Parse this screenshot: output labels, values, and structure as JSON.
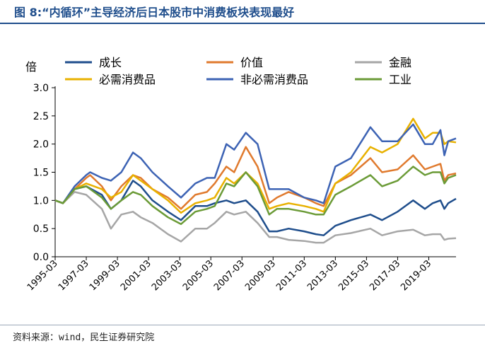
{
  "header": {
    "title": "图 8:“内循环”主导经济后日本股市中消费板块表现最好",
    "title_color": "#1f4e8c",
    "rule_color": "#1f4e8c"
  },
  "source": {
    "text": "资料来源：wind，民生证券研究院"
  },
  "chart_data": {
    "type": "line",
    "ylabel": "倍",
    "ylim": [
      0.0,
      3.0
    ],
    "yticks": [
      "0.0",
      "0.5",
      "1.0",
      "1.5",
      "2.0",
      "2.5",
      "3.0"
    ],
    "xlim": [
      "1995-03",
      "2020-12"
    ],
    "xticks": [
      "1995-03",
      "1997-03",
      "1999-03",
      "2001-03",
      "2003-03",
      "2005-03",
      "2007-03",
      "2009-03",
      "2011-03",
      "2013-03",
      "2015-03",
      "2017-03",
      "2019-03"
    ],
    "legend_position": "top",
    "grid": false,
    "series": [
      {
        "name": "成长",
        "color": "#1f4e8c",
        "points": [
          [
            "1995-03",
            1.0
          ],
          [
            "1995-09",
            0.95
          ],
          [
            "1996-06",
            1.2
          ],
          [
            "1997-03",
            1.25
          ],
          [
            "1998-03",
            1.1
          ],
          [
            "1998-10",
            0.85
          ],
          [
            "1999-06",
            1.0
          ],
          [
            "2000-03",
            1.35
          ],
          [
            "2000-09",
            1.25
          ],
          [
            "2001-06",
            1.0
          ],
          [
            "2002-06",
            0.8
          ],
          [
            "2003-04",
            0.65
          ],
          [
            "2004-03",
            0.9
          ],
          [
            "2004-12",
            0.9
          ],
          [
            "2005-06",
            0.95
          ],
          [
            "2006-03",
            1.0
          ],
          [
            "2006-09",
            0.95
          ],
          [
            "2007-06",
            1.0
          ],
          [
            "2008-03",
            0.8
          ],
          [
            "2008-12",
            0.45
          ],
          [
            "2009-06",
            0.45
          ],
          [
            "2010-03",
            0.5
          ],
          [
            "2011-03",
            0.45
          ],
          [
            "2011-12",
            0.4
          ],
          [
            "2012-06",
            0.38
          ],
          [
            "2013-03",
            0.55
          ],
          [
            "2014-03",
            0.65
          ],
          [
            "2015-06",
            0.75
          ],
          [
            "2016-03",
            0.65
          ],
          [
            "2017-03",
            0.8
          ],
          [
            "2018-03",
            1.0
          ],
          [
            "2018-12",
            0.85
          ],
          [
            "2019-06",
            0.95
          ],
          [
            "2019-12",
            1.0
          ],
          [
            "2020-03",
            0.85
          ],
          [
            "2020-06",
            0.95
          ],
          [
            "2020-12",
            1.03
          ]
        ]
      },
      {
        "name": "价值",
        "color": "#e07a2e",
        "points": [
          [
            "1995-03",
            1.0
          ],
          [
            "1995-09",
            0.95
          ],
          [
            "1996-06",
            1.2
          ],
          [
            "1997-03",
            1.4
          ],
          [
            "1997-06",
            1.45
          ],
          [
            "1998-03",
            1.25
          ],
          [
            "1998-10",
            1.0
          ],
          [
            "1999-06",
            1.25
          ],
          [
            "2000-03",
            1.45
          ],
          [
            "2000-09",
            1.4
          ],
          [
            "2001-06",
            1.2
          ],
          [
            "2002-06",
            1.05
          ],
          [
            "2003-04",
            0.85
          ],
          [
            "2004-03",
            1.1
          ],
          [
            "2004-12",
            1.15
          ],
          [
            "2005-06",
            1.3
          ],
          [
            "2006-03",
            1.6
          ],
          [
            "2006-09",
            1.5
          ],
          [
            "2007-06",
            1.95
          ],
          [
            "2008-03",
            1.6
          ],
          [
            "2008-12",
            0.95
          ],
          [
            "2009-06",
            1.05
          ],
          [
            "2010-03",
            1.15
          ],
          [
            "2011-03",
            1.05
          ],
          [
            "2011-12",
            0.95
          ],
          [
            "2012-06",
            0.9
          ],
          [
            "2013-03",
            1.3
          ],
          [
            "2014-03",
            1.45
          ],
          [
            "2015-06",
            1.75
          ],
          [
            "2016-03",
            1.5
          ],
          [
            "2017-03",
            1.55
          ],
          [
            "2018-03",
            1.8
          ],
          [
            "2018-12",
            1.55
          ],
          [
            "2019-06",
            1.6
          ],
          [
            "2019-12",
            1.65
          ],
          [
            "2020-03",
            1.35
          ],
          [
            "2020-06",
            1.45
          ],
          [
            "2020-12",
            1.48
          ]
        ]
      },
      {
        "name": "金融",
        "color": "#a6a6a6",
        "points": [
          [
            "1995-03",
            1.0
          ],
          [
            "1995-09",
            0.95
          ],
          [
            "1996-06",
            1.15
          ],
          [
            "1997-03",
            1.1
          ],
          [
            "1998-03",
            0.85
          ],
          [
            "1998-10",
            0.5
          ],
          [
            "1999-06",
            0.75
          ],
          [
            "2000-03",
            0.8
          ],
          [
            "2000-09",
            0.7
          ],
          [
            "2001-06",
            0.6
          ],
          [
            "2002-06",
            0.4
          ],
          [
            "2003-04",
            0.27
          ],
          [
            "2004-03",
            0.5
          ],
          [
            "2004-12",
            0.5
          ],
          [
            "2005-06",
            0.6
          ],
          [
            "2006-03",
            0.8
          ],
          [
            "2006-09",
            0.75
          ],
          [
            "2007-06",
            0.8
          ],
          [
            "2008-03",
            0.6
          ],
          [
            "2008-12",
            0.35
          ],
          [
            "2009-06",
            0.35
          ],
          [
            "2010-03",
            0.3
          ],
          [
            "2011-03",
            0.28
          ],
          [
            "2011-12",
            0.25
          ],
          [
            "2012-06",
            0.25
          ],
          [
            "2013-03",
            0.38
          ],
          [
            "2014-03",
            0.42
          ],
          [
            "2015-06",
            0.5
          ],
          [
            "2016-03",
            0.38
          ],
          [
            "2017-03",
            0.45
          ],
          [
            "2018-03",
            0.48
          ],
          [
            "2018-12",
            0.38
          ],
          [
            "2019-06",
            0.4
          ],
          [
            "2019-12",
            0.4
          ],
          [
            "2020-03",
            0.3
          ],
          [
            "2020-06",
            0.32
          ],
          [
            "2020-12",
            0.33
          ]
        ]
      },
      {
        "name": "必需消费品",
        "color": "#e8b100",
        "points": [
          [
            "1995-03",
            1.0
          ],
          [
            "1995-09",
            0.95
          ],
          [
            "1996-06",
            1.2
          ],
          [
            "1997-03",
            1.3
          ],
          [
            "1998-03",
            1.2
          ],
          [
            "1998-10",
            1.05
          ],
          [
            "1999-06",
            1.15
          ],
          [
            "2000-03",
            1.45
          ],
          [
            "2000-09",
            1.35
          ],
          [
            "2001-06",
            1.2
          ],
          [
            "2002-06",
            1.0
          ],
          [
            "2003-04",
            0.78
          ],
          [
            "2004-03",
            0.95
          ],
          [
            "2004-12",
            1.0
          ],
          [
            "2005-06",
            1.05
          ],
          [
            "2006-03",
            1.4
          ],
          [
            "2006-09",
            1.3
          ],
          [
            "2007-06",
            1.5
          ],
          [
            "2008-03",
            1.3
          ],
          [
            "2008-12",
            0.85
          ],
          [
            "2009-06",
            0.9
          ],
          [
            "2010-03",
            0.95
          ],
          [
            "2011-03",
            0.9
          ],
          [
            "2011-12",
            0.85
          ],
          [
            "2012-06",
            0.8
          ],
          [
            "2013-03",
            1.3
          ],
          [
            "2014-03",
            1.5
          ],
          [
            "2015-06",
            1.95
          ],
          [
            "2016-03",
            1.85
          ],
          [
            "2017-03",
            2.0
          ],
          [
            "2018-03",
            2.45
          ],
          [
            "2018-12",
            2.1
          ],
          [
            "2019-06",
            2.2
          ],
          [
            "2019-12",
            2.2
          ],
          [
            "2020-03",
            2.0
          ],
          [
            "2020-06",
            2.05
          ],
          [
            "2020-12",
            2.03
          ]
        ]
      },
      {
        "name": "非必需消费品",
        "color": "#3d63b4",
        "points": [
          [
            "1995-03",
            1.0
          ],
          [
            "1995-09",
            0.95
          ],
          [
            "1996-06",
            1.25
          ],
          [
            "1997-03",
            1.45
          ],
          [
            "1997-06",
            1.5
          ],
          [
            "1998-03",
            1.4
          ],
          [
            "1998-10",
            1.35
          ],
          [
            "1999-06",
            1.5
          ],
          [
            "2000-03",
            1.85
          ],
          [
            "2000-09",
            1.75
          ],
          [
            "2001-06",
            1.5
          ],
          [
            "2002-06",
            1.25
          ],
          [
            "2003-04",
            1.05
          ],
          [
            "2004-03",
            1.3
          ],
          [
            "2004-12",
            1.4
          ],
          [
            "2005-06",
            1.4
          ],
          [
            "2006-03",
            2.0
          ],
          [
            "2006-09",
            1.9
          ],
          [
            "2007-06",
            2.2
          ],
          [
            "2008-03",
            2.0
          ],
          [
            "2008-12",
            1.2
          ],
          [
            "2009-06",
            1.2
          ],
          [
            "2010-03",
            1.2
          ],
          [
            "2011-03",
            1.05
          ],
          [
            "2011-12",
            1.0
          ],
          [
            "2012-06",
            0.95
          ],
          [
            "2013-03",
            1.6
          ],
          [
            "2014-03",
            1.75
          ],
          [
            "2015-06",
            2.3
          ],
          [
            "2016-03",
            2.05
          ],
          [
            "2017-03",
            2.05
          ],
          [
            "2018-03",
            2.35
          ],
          [
            "2018-12",
            2.0
          ],
          [
            "2019-06",
            2.0
          ],
          [
            "2019-12",
            2.25
          ],
          [
            "2020-03",
            1.8
          ],
          [
            "2020-06",
            2.05
          ],
          [
            "2020-12",
            2.1
          ]
        ]
      },
      {
        "name": "工业",
        "color": "#6b9b37",
        "points": [
          [
            "1995-03",
            1.0
          ],
          [
            "1995-09",
            0.95
          ],
          [
            "1996-06",
            1.2
          ],
          [
            "1997-03",
            1.25
          ],
          [
            "1998-03",
            1.05
          ],
          [
            "1998-10",
            0.85
          ],
          [
            "1999-06",
            1.0
          ],
          [
            "2000-03",
            1.15
          ],
          [
            "2000-09",
            1.1
          ],
          [
            "2001-06",
            0.9
          ],
          [
            "2002-06",
            0.7
          ],
          [
            "2003-04",
            0.58
          ],
          [
            "2004-03",
            0.8
          ],
          [
            "2004-12",
            0.85
          ],
          [
            "2005-06",
            0.9
          ],
          [
            "2006-03",
            1.3
          ],
          [
            "2006-09",
            1.25
          ],
          [
            "2007-06",
            1.5
          ],
          [
            "2008-03",
            1.25
          ],
          [
            "2008-12",
            0.75
          ],
          [
            "2009-06",
            0.85
          ],
          [
            "2010-03",
            0.85
          ],
          [
            "2011-03",
            0.8
          ],
          [
            "2011-12",
            0.75
          ],
          [
            "2012-06",
            0.75
          ],
          [
            "2013-03",
            1.1
          ],
          [
            "2014-03",
            1.25
          ],
          [
            "2015-06",
            1.45
          ],
          [
            "2016-03",
            1.25
          ],
          [
            "2017-03",
            1.35
          ],
          [
            "2018-03",
            1.6
          ],
          [
            "2018-12",
            1.45
          ],
          [
            "2019-06",
            1.5
          ],
          [
            "2019-12",
            1.5
          ],
          [
            "2020-03",
            1.3
          ],
          [
            "2020-06",
            1.4
          ],
          [
            "2020-12",
            1.45
          ]
        ]
      }
    ]
  }
}
